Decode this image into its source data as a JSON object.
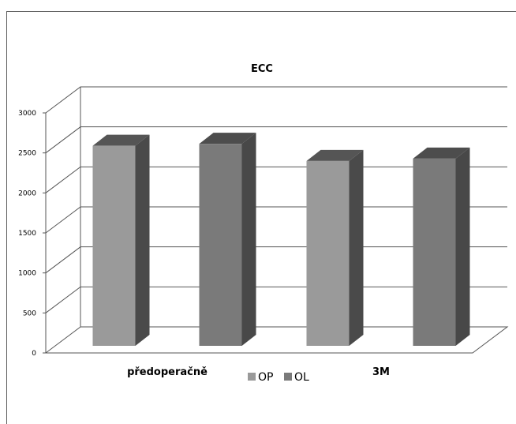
{
  "chart_data": {
    "type": "bar",
    "title": "ECC",
    "categories": [
      "předoperačně",
      "3M"
    ],
    "series": [
      {
        "name": "OP",
        "values": [
          2500,
          2310
        ],
        "color": "#9a9a9a",
        "top_color": "#555555",
        "side_color": "#4a4a4a"
      },
      {
        "name": "OL",
        "values": [
          2525,
          2340
        ],
        "color": "#7a7a7a",
        "top_color": "#4d4d4d",
        "side_color": "#484848"
      }
    ],
    "ylim": [
      0,
      3000
    ],
    "yticks": [
      "0",
      "500",
      "1000",
      "1500",
      "2000",
      "2500",
      "3000"
    ],
    "grid": true,
    "legend": "bottom-center",
    "xlabel": "",
    "ylabel": ""
  }
}
